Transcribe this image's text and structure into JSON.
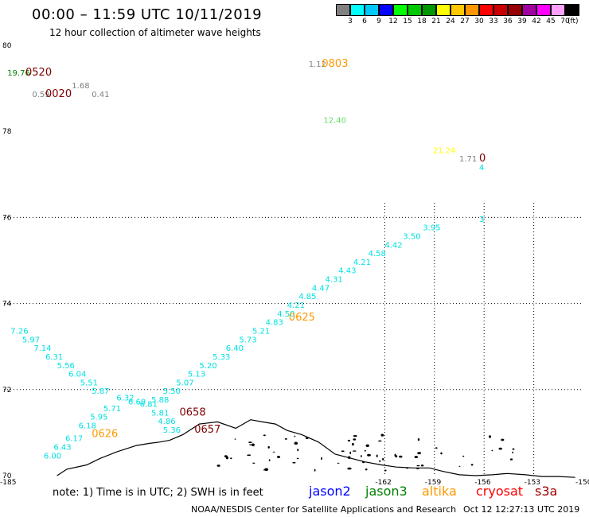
{
  "header": {
    "title": "00:00 – 11:59 UTC 10/11/2019",
    "subtitle": "12 hour collection of altimeter wave heights"
  },
  "colorbar": {
    "labels": [
      "3",
      "6",
      "9",
      "12",
      "15",
      "18",
      "21",
      "24",
      "27",
      "30",
      "33",
      "36",
      "39",
      "42",
      "45",
      "70"
    ],
    "unit": "(ft)",
    "colors": [
      "#808080",
      "#00ffff",
      "#00c8ff",
      "#0000ff",
      "#00ff00",
      "#00c800",
      "#009600",
      "#ffff00",
      "#ffc800",
      "#ff9600",
      "#ff0000",
      "#c80000",
      "#960000",
      "#a000a0",
      "#ff00ff",
      "#ffa0ff",
      "#000000"
    ]
  },
  "axes": {
    "lat_labels": [
      "80",
      "78",
      "76",
      "74",
      "72",
      "70"
    ],
    "lon_labels": [
      "-185",
      "-162",
      "-159",
      "-156",
      "-153",
      "-150"
    ]
  },
  "footer": {
    "note": "note: 1) Time is in UTC; 2) SWH is in feet",
    "satellites": [
      {
        "name": "jason2",
        "color": "#0000ff"
      },
      {
        "name": "jason3",
        "color": "#008000"
      },
      {
        "name": "altika",
        "color": "#ff9900"
      },
      {
        "name": "cryosat",
        "color": "#ff0000"
      },
      {
        "name": "s3a",
        "color": "#a00000"
      }
    ],
    "credit": "NOAA/NESDIS Center for Satellite Applications and Research",
    "timestamp": "Oct 12 12:27:13 UTC 2019"
  },
  "observations": [
    {
      "lon": -184.8,
      "lat": 79.3,
      "value": "19.76",
      "color": "#008000"
    },
    {
      "lon": -183.7,
      "lat": 79.3,
      "value": "0520",
      "color": "#800000",
      "type": "time"
    },
    {
      "lon": -183.3,
      "lat": 78.8,
      "value": "0.59",
      "color": "#808080"
    },
    {
      "lon": -182.5,
      "lat": 78.8,
      "value": "0020",
      "color": "#800000",
      "type": "time"
    },
    {
      "lon": -180.9,
      "lat": 79.0,
      "value": "1.68",
      "color": "#808080"
    },
    {
      "lon": -179.7,
      "lat": 78.8,
      "value": "0.41",
      "color": "#808080"
    },
    {
      "lon": -166.6,
      "lat": 79.5,
      "value": "1.12",
      "color": "#808080"
    },
    {
      "lon": -165.8,
      "lat": 79.5,
      "value": "0803",
      "color": "#ff9900",
      "type": "time"
    },
    {
      "lon": -165.7,
      "lat": 78.2,
      "value": "12.40",
      "color": "#66dd66"
    },
    {
      "lon": -159.1,
      "lat": 77.5,
      "value": "21.24",
      "color": "#ffff00"
    },
    {
      "lon": -157.5,
      "lat": 77.3,
      "value": "1.71",
      "color": "#808080"
    },
    {
      "lon": -156.3,
      "lat": 77.3,
      "value": "0",
      "color": "#800000",
      "type": "time"
    },
    {
      "lon": -156.3,
      "lat": 77.1,
      "value": "4",
      "color": "#00e0e0"
    },
    {
      "lon": -156.3,
      "lat": 75.9,
      "value": "3",
      "color": "#00e0e0"
    },
    {
      "lon": -159.7,
      "lat": 75.7,
      "value": "3.95",
      "color": "#00e0e0"
    },
    {
      "lon": -160.9,
      "lat": 75.5,
      "value": "3.50",
      "color": "#00e0e0"
    },
    {
      "lon": -162.0,
      "lat": 75.3,
      "value": "4.42",
      "color": "#00e0e0"
    },
    {
      "lon": -163.0,
      "lat": 75.1,
      "value": "4.58",
      "color": "#00e0e0"
    },
    {
      "lon": -163.9,
      "lat": 74.9,
      "value": "4.21",
      "color": "#00e0e0"
    },
    {
      "lon": -164.8,
      "lat": 74.7,
      "value": "4.43",
      "color": "#00e0e0"
    },
    {
      "lon": -165.6,
      "lat": 74.5,
      "value": "4.31",
      "color": "#00e0e0"
    },
    {
      "lon": -166.4,
      "lat": 74.3,
      "value": "4.47",
      "color": "#00e0e0"
    },
    {
      "lon": -167.2,
      "lat": 74.1,
      "value": "4.85",
      "color": "#00e0e0"
    },
    {
      "lon": -167.9,
      "lat": 73.9,
      "value": "4.21",
      "color": "#00e0e0"
    },
    {
      "lon": -168.5,
      "lat": 73.7,
      "value": "4.50",
      "color": "#00e0e0"
    },
    {
      "lon": -167.8,
      "lat": 73.6,
      "value": "0625",
      "color": "#ff9900",
      "type": "time"
    },
    {
      "lon": -169.2,
      "lat": 73.5,
      "value": "4.83",
      "color": "#00e0e0"
    },
    {
      "lon": -170.0,
      "lat": 73.3,
      "value": "5.21",
      "color": "#00e0e0"
    },
    {
      "lon": -170.8,
      "lat": 73.1,
      "value": "5.73",
      "color": "#00e0e0"
    },
    {
      "lon": -171.6,
      "lat": 72.9,
      "value": "6.40",
      "color": "#00e0e0"
    },
    {
      "lon": -172.4,
      "lat": 72.7,
      "value": "5.33",
      "color": "#00e0e0"
    },
    {
      "lon": -173.2,
      "lat": 72.5,
      "value": "5.20",
      "color": "#00e0e0"
    },
    {
      "lon": -173.9,
      "lat": 72.3,
      "value": "5.13",
      "color": "#00e0e0"
    },
    {
      "lon": -174.6,
      "lat": 72.1,
      "value": "5.07",
      "color": "#00e0e0"
    },
    {
      "lon": -175.4,
      "lat": 71.9,
      "value": "5.50",
      "color": "#00e0e0"
    },
    {
      "lon": -176.1,
      "lat": 71.7,
      "value": "5.88",
      "color": "#00e0e0"
    },
    {
      "lon": -176.8,
      "lat": 71.6,
      "value": "6.81",
      "color": "#00e0e0"
    },
    {
      "lon": -177.5,
      "lat": 71.65,
      "value": "6.69",
      "color": "#00e0e0"
    },
    {
      "lon": -178.2,
      "lat": 71.75,
      "value": "6.32",
      "color": "#00e0e0"
    },
    {
      "lon": -176.1,
      "lat": 71.4,
      "value": "5.81",
      "color": "#00e0e0"
    },
    {
      "lon": -175.7,
      "lat": 71.2,
      "value": "4.86",
      "color": "#00e0e0"
    },
    {
      "lon": -175.4,
      "lat": 71.0,
      "value": "5.36",
      "color": "#00e0e0"
    },
    {
      "lon": -174.4,
      "lat": 71.4,
      "value": "0658",
      "color": "#800000",
      "type": "time"
    },
    {
      "lon": -173.5,
      "lat": 71.0,
      "value": "0657",
      "color": "#800000",
      "type": "time"
    },
    {
      "lon": -179.0,
      "lat": 71.5,
      "value": "5.71",
      "color": "#00e0e0"
    },
    {
      "lon": -179.8,
      "lat": 71.3,
      "value": "5.95",
      "color": "#00e0e0"
    },
    {
      "lon": -180.5,
      "lat": 71.1,
      "value": "6.18",
      "color": "#00e0e0"
    },
    {
      "lon": -179.7,
      "lat": 70.9,
      "value": "0626",
      "color": "#ff9900",
      "type": "time"
    },
    {
      "lon": -181.3,
      "lat": 70.8,
      "value": "6.17",
      "color": "#00e0e0"
    },
    {
      "lon": -182.0,
      "lat": 70.6,
      "value": "6.43",
      "color": "#00e0e0"
    },
    {
      "lon": -182.6,
      "lat": 70.4,
      "value": "6.00",
      "color": "#00e0e0"
    },
    {
      "lon": -184.6,
      "lat": 73.3,
      "value": "7.26",
      "color": "#00e0e0"
    },
    {
      "lon": -183.9,
      "lat": 73.1,
      "value": "5.97",
      "color": "#00e0e0"
    },
    {
      "lon": -183.2,
      "lat": 72.9,
      "value": "7.14",
      "color": "#00e0e0"
    },
    {
      "lon": -182.5,
      "lat": 72.7,
      "value": "6.31",
      "color": "#00e0e0"
    },
    {
      "lon": -181.8,
      "lat": 72.5,
      "value": "5.56",
      "color": "#00e0e0"
    },
    {
      "lon": -181.1,
      "lat": 72.3,
      "value": "6.04",
      "color": "#00e0e0"
    },
    {
      "lon": -180.4,
      "lat": 72.1,
      "value": "5.51",
      "color": "#00e0e0"
    },
    {
      "lon": -179.7,
      "lat": 71.9,
      "value": "5.87",
      "color": "#00e0e0"
    }
  ]
}
